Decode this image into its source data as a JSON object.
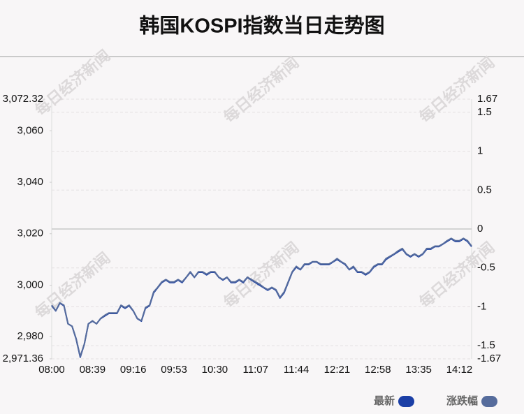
{
  "chart_data": {
    "type": "line",
    "title": "韩国KOSPI指数当日走势图",
    "watermark": "每日经济新闻",
    "categories": [
      "08:00",
      null,
      null,
      null,
      null,
      null,
      null,
      null,
      null,
      null,
      "08:39",
      null,
      null,
      null,
      null,
      null,
      null,
      null,
      null,
      null,
      "09:16",
      null,
      null,
      null,
      null,
      null,
      null,
      null,
      null,
      null,
      "09:53",
      null,
      null,
      null,
      null,
      null,
      null,
      null,
      null,
      null,
      "10:30",
      null,
      null,
      null,
      null,
      null,
      null,
      null,
      null,
      null,
      "11:07",
      null,
      null,
      null,
      null,
      null,
      null,
      null,
      null,
      null,
      "11:44",
      null,
      null,
      null,
      null,
      null,
      null,
      null,
      null,
      null,
      "12:21",
      null,
      null,
      null,
      null,
      null,
      null,
      null,
      null,
      null,
      "12:58",
      null,
      null,
      null,
      null,
      null,
      null,
      null,
      null,
      null,
      "13:35",
      null,
      null,
      null,
      null,
      null,
      null,
      null,
      null,
      null,
      "14:12",
      null,
      null,
      null
    ],
    "series": [
      {
        "name": "最新",
        "color": "#1b3fa6",
        "values": [
          2992,
          2990,
          2993,
          2992,
          2985,
          2984,
          2979,
          2972,
          2977,
          2985,
          2986,
          2985,
          2987,
          2988,
          2989,
          2989,
          2989,
          2992,
          2991,
          2992,
          2990,
          2987,
          2986,
          2991,
          2992,
          2997,
          2999,
          3001,
          3002,
          3001,
          3001,
          3002,
          3001,
          3003,
          3005,
          3003,
          3005,
          3005,
          3004,
          3005,
          3005,
          3003,
          3002,
          3003,
          3001,
          3001,
          3002,
          3001,
          3003,
          3002,
          3001,
          3000,
          2999,
          2998,
          2999,
          2998,
          2995,
          2997,
          3001,
          3005,
          3007,
          3006,
          3008,
          3008,
          3009,
          3009,
          3008,
          3008,
          3008,
          3009,
          3010,
          3009,
          3008,
          3006,
          3007,
          3005,
          3005,
          3004,
          3005,
          3007,
          3008,
          3008,
          3010,
          3011,
          3012,
          3013,
          3014,
          3012,
          3011,
          3012,
          3011,
          3012,
          3014,
          3014,
          3015,
          3015,
          3016,
          3017,
          3018,
          3017,
          3017,
          3018,
          3017,
          3015
        ]
      },
      {
        "name": "涨跌幅",
        "color": "#566c9c",
        "axis": "y2",
        "values": [
          -0.98,
          -1.05,
          -0.95,
          -0.98,
          -1.22,
          -1.25,
          -1.41,
          -1.64,
          -1.48,
          -1.22,
          -1.18,
          -1.22,
          -1.15,
          -1.11,
          -1.08,
          -1.08,
          -1.08,
          -0.98,
          -1.01,
          -0.98,
          -1.05,
          -1.15,
          -1.18,
          -1.01,
          -0.98,
          -0.81,
          -0.75,
          -0.68,
          -0.65,
          -0.68,
          -0.68,
          -0.65,
          -0.68,
          -0.62,
          -0.55,
          -0.62,
          -0.55,
          -0.55,
          -0.58,
          -0.55,
          -0.55,
          -0.62,
          -0.65,
          -0.62,
          -0.68,
          -0.68,
          -0.65,
          -0.68,
          -0.62,
          -0.65,
          -0.68,
          -0.71,
          -0.75,
          -0.78,
          -0.75,
          -0.78,
          -0.88,
          -0.81,
          -0.68,
          -0.55,
          -0.48,
          -0.52,
          -0.45,
          -0.45,
          -0.42,
          -0.42,
          -0.45,
          -0.45,
          -0.45,
          -0.42,
          -0.38,
          -0.42,
          -0.45,
          -0.52,
          -0.48,
          -0.55,
          -0.55,
          -0.58,
          -0.55,
          -0.48,
          -0.45,
          -0.45,
          -0.38,
          -0.35,
          -0.32,
          -0.28,
          -0.25,
          -0.32,
          -0.35,
          -0.32,
          -0.35,
          -0.32,
          -0.25,
          -0.25,
          -0.22,
          -0.22,
          -0.19,
          -0.15,
          -0.12,
          -0.15,
          -0.15,
          -0.12,
          -0.15,
          -0.22
        ]
      }
    ],
    "ylim": [
      2971.36,
      3072.32
    ],
    "yticks": [
      {
        "value": 3072.32,
        "label": "3,072.32"
      },
      {
        "value": 3060,
        "label": "3,060"
      },
      {
        "value": 3040,
        "label": "3,040"
      },
      {
        "value": 3020,
        "label": "3,020"
      },
      {
        "value": 3000,
        "label": "3,000"
      },
      {
        "value": 2980,
        "label": "2,980"
      },
      {
        "value": 2971.36,
        "label": "2,971.36"
      }
    ],
    "y2lim": [
      -1.67,
      1.67
    ],
    "y2ticks": [
      1.67,
      1.5,
      1,
      0.5,
      0,
      -0.5,
      -1,
      -1.5,
      -1.67
    ],
    "grid": true
  }
}
